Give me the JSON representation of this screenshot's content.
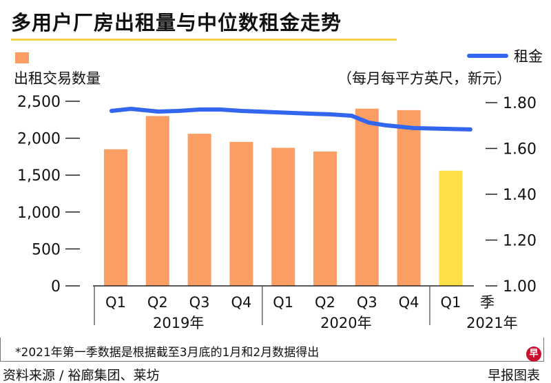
{
  "title": "多用户厂房出租量与中位数租金走势",
  "legend": {
    "bars": "出租交易数量",
    "line": "租金",
    "line_unit": "（每月每平方英尺，新元）"
  },
  "footnote": "*2021年第一季数据是根据截至3月底的1月和2月数据得出",
  "source": "资料来源 / 裕廊集团、莱坊",
  "credit": "早报图表",
  "logo_text": "早",
  "chart_data": {
    "type": "bar+line",
    "title": "多用户厂房出租量与中位数租金走势",
    "xlabel": "季",
    "categories": [
      "Q1",
      "Q2",
      "Q3",
      "Q4",
      "Q1",
      "Q2",
      "Q3",
      "Q4",
      "Q1"
    ],
    "years": [
      {
        "label": "2019年",
        "span": 4
      },
      {
        "label": "2020年",
        "span": 4
      },
      {
        "label": "2021年",
        "span": 1
      }
    ],
    "series": [
      {
        "name": "出租交易数量",
        "type": "bar",
        "axis": "left",
        "values": [
          1850,
          2300,
          2060,
          1950,
          1870,
          1820,
          2400,
          2380,
          1560
        ],
        "colors": [
          "#fb9e63",
          "#fb9e63",
          "#fb9e63",
          "#fb9e63",
          "#fb9e63",
          "#fb9e63",
          "#fb9e63",
          "#fb9e63",
          "#fde047"
        ]
      },
      {
        "name": "租金",
        "type": "line",
        "axis": "right",
        "color": "#3366ee",
        "points": [
          [
            -0.1,
            1.764
          ],
          [
            0.36,
            1.773
          ],
          [
            1.02,
            1.761
          ],
          [
            1.51,
            1.764
          ],
          [
            2.0,
            1.77
          ],
          [
            2.5,
            1.77
          ],
          [
            3.0,
            1.764
          ],
          [
            3.82,
            1.758
          ],
          [
            4.64,
            1.752
          ],
          [
            5.13,
            1.749
          ],
          [
            5.63,
            1.743
          ],
          [
            6.04,
            1.713
          ],
          [
            6.45,
            1.701
          ],
          [
            7.11,
            1.689
          ],
          [
            7.76,
            1.686
          ],
          [
            8.47,
            1.683
          ]
        ]
      }
    ],
    "left_axis": {
      "label": "出租交易数量",
      "ylim": [
        0,
        2500
      ],
      "ticks": [
        "0",
        "500",
        "1,000",
        "1,500",
        "2,000",
        "2,500"
      ],
      "tick_values": [
        0,
        500,
        1000,
        1500,
        2000,
        2500
      ]
    },
    "right_axis": {
      "label": "租金（每月每平方英尺，新元）",
      "ylim": [
        1.0,
        1.8
      ],
      "ticks": [
        "1.00",
        "1.20",
        "1.40",
        "1.60",
        "1.80"
      ],
      "tick_values": [
        1.0,
        1.2,
        1.4,
        1.6,
        1.8
      ]
    },
    "grid": false
  }
}
